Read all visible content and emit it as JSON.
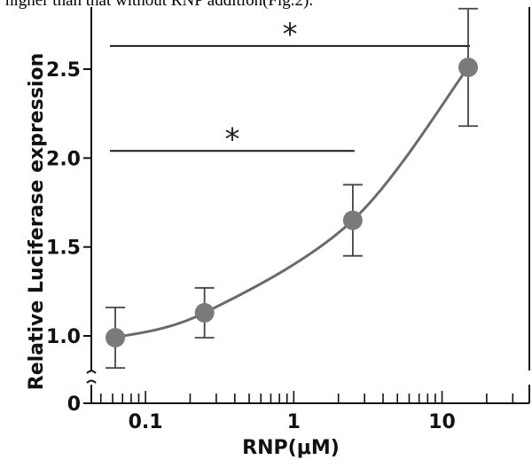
{
  "caption": "higher than that without RNP addition(Fig.2).",
  "colors": {
    "point": "#7a7a7a",
    "curve": "#6a6a6a",
    "axis": "#111111",
    "line": "#1a1a1a"
  },
  "chart_data": {
    "type": "scatter",
    "xlabel": "RNP(μM)",
    "ylabel": "Relative Luciferase expression",
    "x_scale": "log",
    "xlim": [
      0.05,
      30
    ],
    "ylim": [
      0,
      2.75
    ],
    "x_ticks": [
      {
        "value": 0.1,
        "label": "0.1"
      },
      {
        "value": 1,
        "label": "1"
      },
      {
        "value": 10,
        "label": "10"
      }
    ],
    "y_ticks": [
      {
        "value": 0,
        "label": "0"
      },
      {
        "value": 1.0,
        "label": "1.0"
      },
      {
        "value": 1.5,
        "label": "1.5"
      },
      {
        "value": 2.0,
        "label": "2.0"
      },
      {
        "value": 2.5,
        "label": "2.5"
      }
    ],
    "axis_break": "y between 0 and 0.85",
    "points": [
      {
        "x": 0.0625,
        "y": 0.99,
        "err": 0.17
      },
      {
        "x": 0.25,
        "y": 1.13,
        "err": 0.14
      },
      {
        "x": 2.5,
        "y": 1.65,
        "err": 0.2
      },
      {
        "x": 15,
        "y": 2.51,
        "err": 0.33
      }
    ],
    "curve": "smooth fit through points",
    "significance": [
      {
        "x_from": 0.0625,
        "x_to": 2.5,
        "y": 2.04,
        "label": "*"
      },
      {
        "x_from": 0.0625,
        "x_to": 15,
        "y": 2.63,
        "label": "*"
      }
    ],
    "grid": false,
    "legend": "none"
  }
}
